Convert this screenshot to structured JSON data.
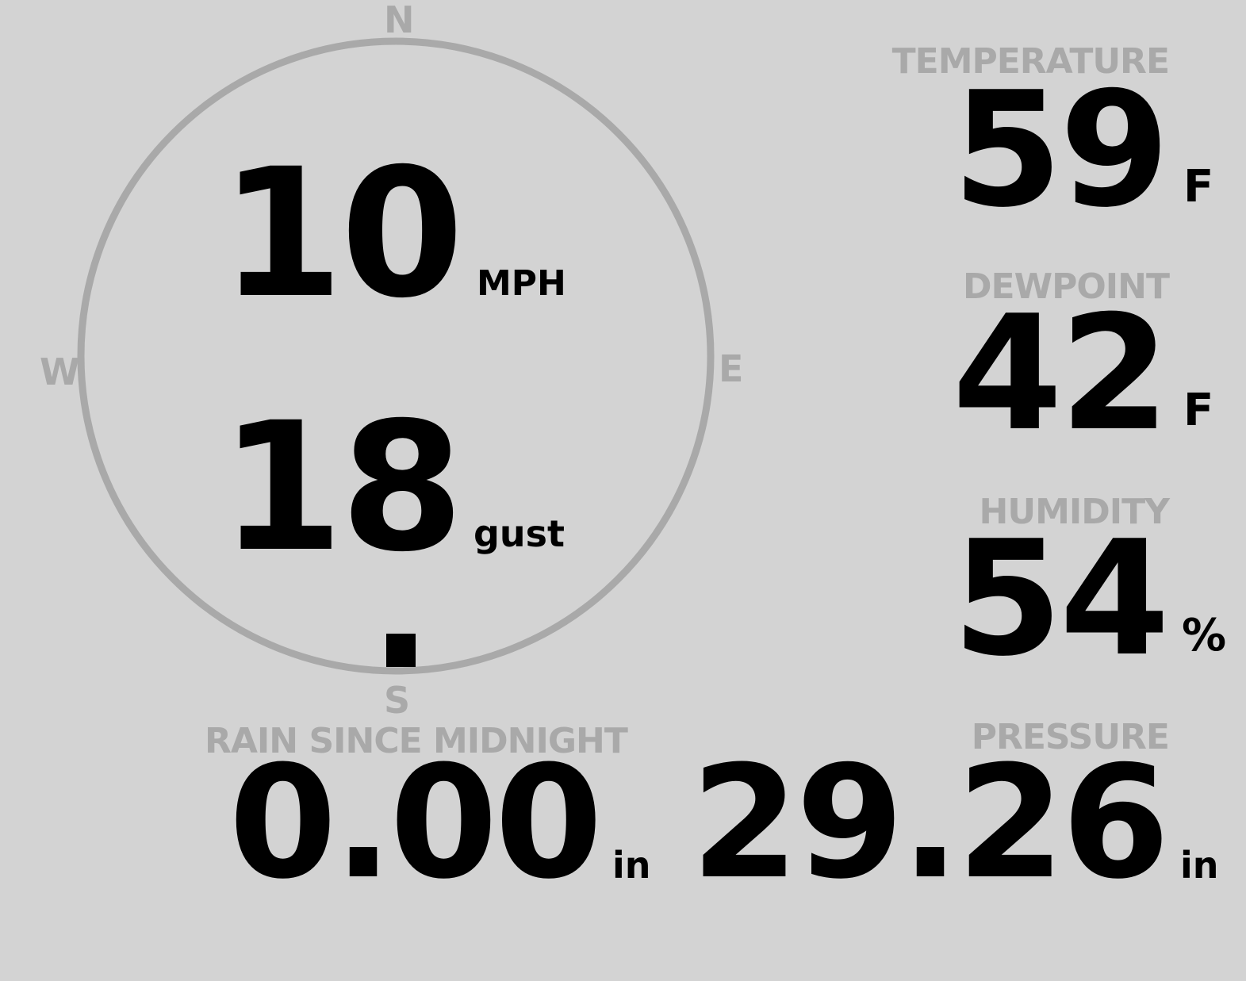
{
  "colors": {
    "background": "#d3d3d3",
    "label": "#a9a9a9",
    "value": "#000000",
    "dial": "#a9a9a9"
  },
  "wind": {
    "cardinals": {
      "n": "N",
      "e": "E",
      "s": "S",
      "w": "W"
    },
    "direction_deg": 180,
    "speed": "10",
    "speed_unit": "MPH",
    "gust": "18",
    "gust_unit": "gust"
  },
  "temperature": {
    "label": "TEMPERATURE",
    "value": "59",
    "unit": "F"
  },
  "dewpoint": {
    "label": "DEWPOINT",
    "value": "42",
    "unit": "F"
  },
  "humidity": {
    "label": "HUMIDITY",
    "value": "54",
    "unit": "%"
  },
  "rain": {
    "label": "RAIN SINCE MIDNIGHT",
    "value": "0.00",
    "unit": "in"
  },
  "pressure": {
    "label": "PRESSURE",
    "value": "29.26",
    "unit": "in"
  }
}
